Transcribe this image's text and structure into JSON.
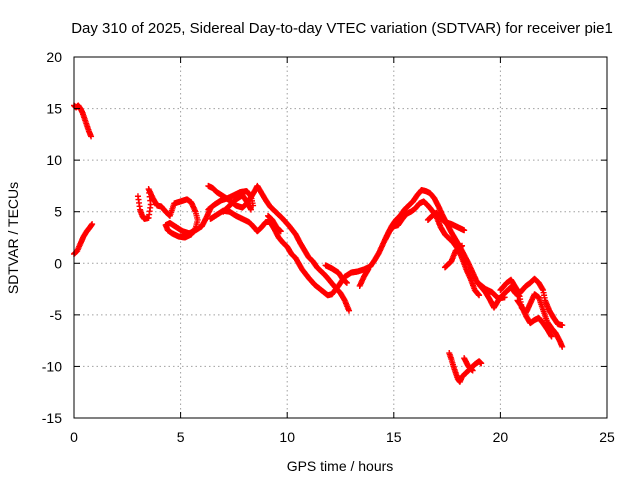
{
  "chart_data": {
    "type": "scatter",
    "title": "Day 310 of 2025, Sidereal Day-to-day VTEC variation (SDTVAR) for receiver pie1",
    "xlabel": "GPS time / hours",
    "ylabel": "SDTVAR / TECUs",
    "xlim": [
      0,
      25
    ],
    "ylim": [
      -15,
      20
    ],
    "x_ticks": [
      0,
      5,
      10,
      15,
      20,
      25
    ],
    "y_ticks": [
      -15,
      -10,
      -5,
      0,
      5,
      10,
      15,
      20
    ],
    "x_tick_labels": [
      "0",
      "5",
      "10",
      "15",
      "20",
      "25"
    ],
    "y_tick_labels": [
      "-15",
      "-10",
      "-5",
      "0",
      "5",
      "10",
      "15",
      "20"
    ],
    "grid": true,
    "marker": "+",
    "series_color": "#ff0000",
    "series": [
      {
        "name": "SDTVAR",
        "segments": [
          [
            [
              0.0,
              15.3
            ],
            [
              0.1,
              15.1
            ],
            [
              0.2,
              15.3
            ],
            [
              0.3,
              15.0
            ],
            [
              0.4,
              14.6
            ],
            [
              0.5,
              14.0
            ],
            [
              0.6,
              13.4
            ],
            [
              0.7,
              12.8
            ],
            [
              0.8,
              12.3
            ]
          ],
          [
            [
              0.0,
              0.9
            ],
            [
              0.15,
              1.2
            ],
            [
              0.3,
              1.9
            ],
            [
              0.45,
              2.6
            ],
            [
              0.6,
              3.1
            ],
            [
              0.75,
              3.5
            ],
            [
              0.85,
              3.8
            ]
          ],
          [
            [
              3.0,
              6.5
            ],
            [
              3.1,
              5.2
            ],
            [
              3.2,
              4.6
            ],
            [
              3.3,
              4.3
            ],
            [
              3.5,
              4.4
            ],
            [
              3.6,
              5.7
            ],
            [
              3.5,
              7.2
            ],
            [
              3.7,
              6.3
            ],
            [
              3.9,
              5.6
            ],
            [
              4.1,
              5.5
            ],
            [
              4.3,
              5.0
            ],
            [
              4.5,
              4.6
            ],
            [
              4.7,
              5.8
            ],
            [
              5.0,
              6.0
            ],
            [
              5.3,
              6.2
            ],
            [
              5.5,
              5.9
            ],
            [
              5.7,
              5.0
            ],
            [
              5.8,
              4.2
            ],
            [
              5.7,
              3.4
            ],
            [
              5.5,
              2.8
            ],
            [
              5.2,
              2.5
            ],
            [
              4.9,
              2.6
            ],
            [
              4.6,
              2.9
            ],
            [
              4.4,
              3.2
            ],
            [
              4.3,
              3.7
            ],
            [
              4.5,
              3.9
            ],
            [
              4.8,
              3.5
            ],
            [
              5.1,
              3.1
            ],
            [
              5.4,
              2.9
            ],
            [
              5.7,
              3.2
            ],
            [
              6.0,
              3.6
            ],
            [
              6.2,
              4.4
            ],
            [
              6.4,
              5.3
            ]
          ],
          [
            [
              6.3,
              7.5
            ],
            [
              6.5,
              7.3
            ],
            [
              6.7,
              6.9
            ],
            [
              7.0,
              6.5
            ],
            [
              7.3,
              6.1
            ],
            [
              7.6,
              5.6
            ],
            [
              7.9,
              5.4
            ],
            [
              8.1,
              5.8
            ],
            [
              8.3,
              6.4
            ],
            [
              8.5,
              7.1
            ],
            [
              8.6,
              7.5
            ],
            [
              8.8,
              6.8
            ],
            [
              9.0,
              6.1
            ],
            [
              9.2,
              5.5
            ],
            [
              9.5,
              4.9
            ],
            [
              9.8,
              4.3
            ],
            [
              10.1,
              3.6
            ],
            [
              10.4,
              2.8
            ],
            [
              10.6,
              2.0
            ],
            [
              10.8,
              1.3
            ],
            [
              11.0,
              0.6
            ],
            [
              11.2,
              0.2
            ],
            [
              11.4,
              -0.4
            ],
            [
              11.6,
              -0.8
            ],
            [
              11.8,
              -1.2
            ],
            [
              12.0,
              -1.7
            ],
            [
              12.2,
              -2.2
            ],
            [
              12.5,
              -2.9
            ],
            [
              12.7,
              -3.6
            ],
            [
              12.9,
              -4.6
            ]
          ],
          [
            [
              6.4,
              4.3
            ],
            [
              6.7,
              4.7
            ],
            [
              7.0,
              5.1
            ],
            [
              7.3,
              5.0
            ],
            [
              7.6,
              4.6
            ],
            [
              7.9,
              4.3
            ],
            [
              8.2,
              4.0
            ],
            [
              8.4,
              3.6
            ],
            [
              8.6,
              3.1
            ],
            [
              8.8,
              3.5
            ],
            [
              9.0,
              4.0
            ],
            [
              9.2,
              4.0
            ],
            [
              9.4,
              3.3
            ],
            [
              9.6,
              2.5
            ],
            [
              9.8,
              2.0
            ],
            [
              10.0,
              1.6
            ],
            [
              10.2,
              0.9
            ],
            [
              10.4,
              0.5
            ],
            [
              10.7,
              -0.6
            ],
            [
              11.0,
              -1.4
            ],
            [
              11.3,
              -2.1
            ],
            [
              11.6,
              -2.6
            ],
            [
              11.9,
              -3.1
            ],
            [
              12.1,
              -3.0
            ],
            [
              12.4,
              -2.2
            ],
            [
              12.7,
              -1.3
            ],
            [
              13.0,
              -0.9
            ],
            [
              13.3,
              -0.8
            ],
            [
              13.6,
              -0.6
            ],
            [
              13.9,
              -0.3
            ],
            [
              14.1,
              0.3
            ],
            [
              14.3,
              1.0
            ],
            [
              14.5,
              1.9
            ],
            [
              14.7,
              2.8
            ],
            [
              14.9,
              3.6
            ],
            [
              15.1,
              4.2
            ],
            [
              15.3,
              4.6
            ],
            [
              15.5,
              5.2
            ],
            [
              15.7,
              5.6
            ],
            [
              15.9,
              6.0
            ],
            [
              16.1,
              6.6
            ],
            [
              16.3,
              7.1
            ],
            [
              16.5,
              7.0
            ],
            [
              16.7,
              6.8
            ],
            [
              16.9,
              6.3
            ],
            [
              17.1,
              5.5
            ],
            [
              17.3,
              4.6
            ],
            [
              17.5,
              3.8
            ],
            [
              17.7,
              3.0
            ],
            [
              17.9,
              2.3
            ],
            [
              18.1,
              1.6
            ],
            [
              18.3,
              0.8
            ],
            [
              18.5,
              0.0
            ],
            [
              18.7,
              -0.9
            ],
            [
              18.9,
              -1.8
            ],
            [
              19.1,
              -2.3
            ],
            [
              19.3,
              -2.8
            ],
            [
              19.5,
              -3.5
            ],
            [
              19.7,
              -4.3
            ],
            [
              19.9,
              -3.6
            ],
            [
              20.1,
              -3.1
            ],
            [
              20.3,
              -2.7
            ],
            [
              20.5,
              -2.3
            ],
            [
              20.7,
              -2.9
            ],
            [
              20.9,
              -3.2
            ],
            [
              21.0,
              -4.3
            ],
            [
              21.2,
              -4.8
            ],
            [
              21.4,
              -3.9
            ],
            [
              21.6,
              -3.0
            ],
            [
              21.8,
              -3.3
            ],
            [
              22.0,
              -4.5
            ],
            [
              22.2,
              -5.7
            ],
            [
              22.4,
              -6.3
            ],
            [
              22.6,
              -6.8
            ],
            [
              22.8,
              -7.6
            ],
            [
              22.9,
              -8.1
            ]
          ],
          [
            [
              6.3,
              5.2
            ],
            [
              6.6,
              5.7
            ],
            [
              6.9,
              6.1
            ],
            [
              7.2,
              6.3
            ],
            [
              7.5,
              6.6
            ],
            [
              7.8,
              6.9
            ],
            [
              8.1,
              7.0
            ],
            [
              8.3,
              6.5
            ],
            [
              8.4,
              5.6
            ]
          ],
          [
            [
              7.0,
              5.0
            ],
            [
              7.3,
              5.6
            ],
            [
              7.6,
              6.2
            ],
            [
              7.9,
              6.6
            ],
            [
              8.1,
              6.0
            ],
            [
              8.3,
              5.2
            ]
          ],
          [
            [
              9.1,
              4.6
            ],
            [
              9.3,
              4.2
            ],
            [
              9.5,
              3.5
            ],
            [
              9.7,
              3.1
            ]
          ],
          [
            [
              11.8,
              -0.2
            ],
            [
              12.1,
              -0.5
            ],
            [
              12.4,
              -0.9
            ],
            [
              12.6,
              -1.5
            ],
            [
              12.8,
              -1.9
            ]
          ],
          [
            [
              13.4,
              -2.2
            ],
            [
              13.6,
              -1.3
            ],
            [
              13.8,
              -0.6
            ]
          ],
          [
            [
              14.6,
              2.3
            ],
            [
              14.8,
              3.1
            ],
            [
              15.0,
              3.6
            ],
            [
              15.2,
              3.7
            ],
            [
              15.4,
              4.3
            ],
            [
              15.6,
              4.8
            ],
            [
              15.8,
              5.0
            ],
            [
              16.0,
              5.3
            ],
            [
              16.2,
              5.8
            ],
            [
              16.4,
              6.0
            ],
            [
              16.6,
              5.6
            ],
            [
              16.8,
              5.1
            ],
            [
              17.0,
              4.5
            ],
            [
              17.2,
              3.5
            ],
            [
              17.4,
              2.8
            ],
            [
              17.6,
              2.4
            ],
            [
              17.8,
              2.0
            ],
            [
              18.0,
              1.4
            ],
            [
              18.2,
              0.5
            ],
            [
              18.4,
              -0.6
            ],
            [
              18.6,
              -1.5
            ],
            [
              18.8,
              -2.6
            ],
            [
              19.0,
              -3.1
            ]
          ],
          [
            [
              16.6,
              4.2
            ],
            [
              16.8,
              4.6
            ],
            [
              17.0,
              4.9
            ],
            [
              17.2,
              4.4
            ],
            [
              17.4,
              4.0
            ],
            [
              17.7,
              3.8
            ],
            [
              18.0,
              3.5
            ],
            [
              18.3,
              3.2
            ]
          ],
          [
            [
              17.4,
              -0.4
            ],
            [
              17.7,
              0.2
            ],
            [
              17.9,
              1.2
            ],
            [
              18.2,
              1.7
            ]
          ],
          [
            [
              19.0,
              -2.0
            ],
            [
              19.3,
              -2.5
            ],
            [
              19.6,
              -2.8
            ],
            [
              19.9,
              -3.4
            ],
            [
              20.2,
              -3.3
            ]
          ],
          [
            [
              20.0,
              -2.6
            ],
            [
              20.3,
              -1.9
            ],
            [
              20.5,
              -1.6
            ],
            [
              20.7,
              -2.3
            ],
            [
              20.9,
              -2.9
            ],
            [
              21.2,
              -2.2
            ],
            [
              21.4,
              -1.9
            ],
            [
              21.6,
              -1.5
            ],
            [
              21.8,
              -1.9
            ],
            [
              22.0,
              -2.6
            ],
            [
              22.1,
              -3.6
            ],
            [
              22.3,
              -4.6
            ],
            [
              22.5,
              -5.3
            ],
            [
              22.7,
              -5.9
            ],
            [
              22.9,
              -6.0
            ]
          ],
          [
            [
              20.8,
              -3.6
            ],
            [
              21.0,
              -4.2
            ],
            [
              21.2,
              -5.1
            ],
            [
              21.4,
              -5.8
            ],
            [
              21.6,
              -5.5
            ],
            [
              21.8,
              -5.3
            ],
            [
              22.0,
              -5.8
            ],
            [
              22.2,
              -6.4
            ],
            [
              22.4,
              -7.1
            ]
          ],
          [
            [
              17.6,
              -8.7
            ],
            [
              17.7,
              -9.3
            ],
            [
              17.8,
              -10.0
            ],
            [
              17.9,
              -10.6
            ],
            [
              18.0,
              -11.2
            ],
            [
              18.1,
              -11.5
            ],
            [
              18.2,
              -11.0
            ],
            [
              18.4,
              -10.6
            ],
            [
              18.6,
              -10.2
            ],
            [
              18.8,
              -9.8
            ],
            [
              19.0,
              -9.5
            ],
            [
              19.1,
              -9.7
            ]
          ],
          [
            [
              18.3,
              -9.2
            ],
            [
              18.5,
              -10.0
            ],
            [
              18.7,
              -10.4
            ]
          ]
        ]
      }
    ]
  }
}
